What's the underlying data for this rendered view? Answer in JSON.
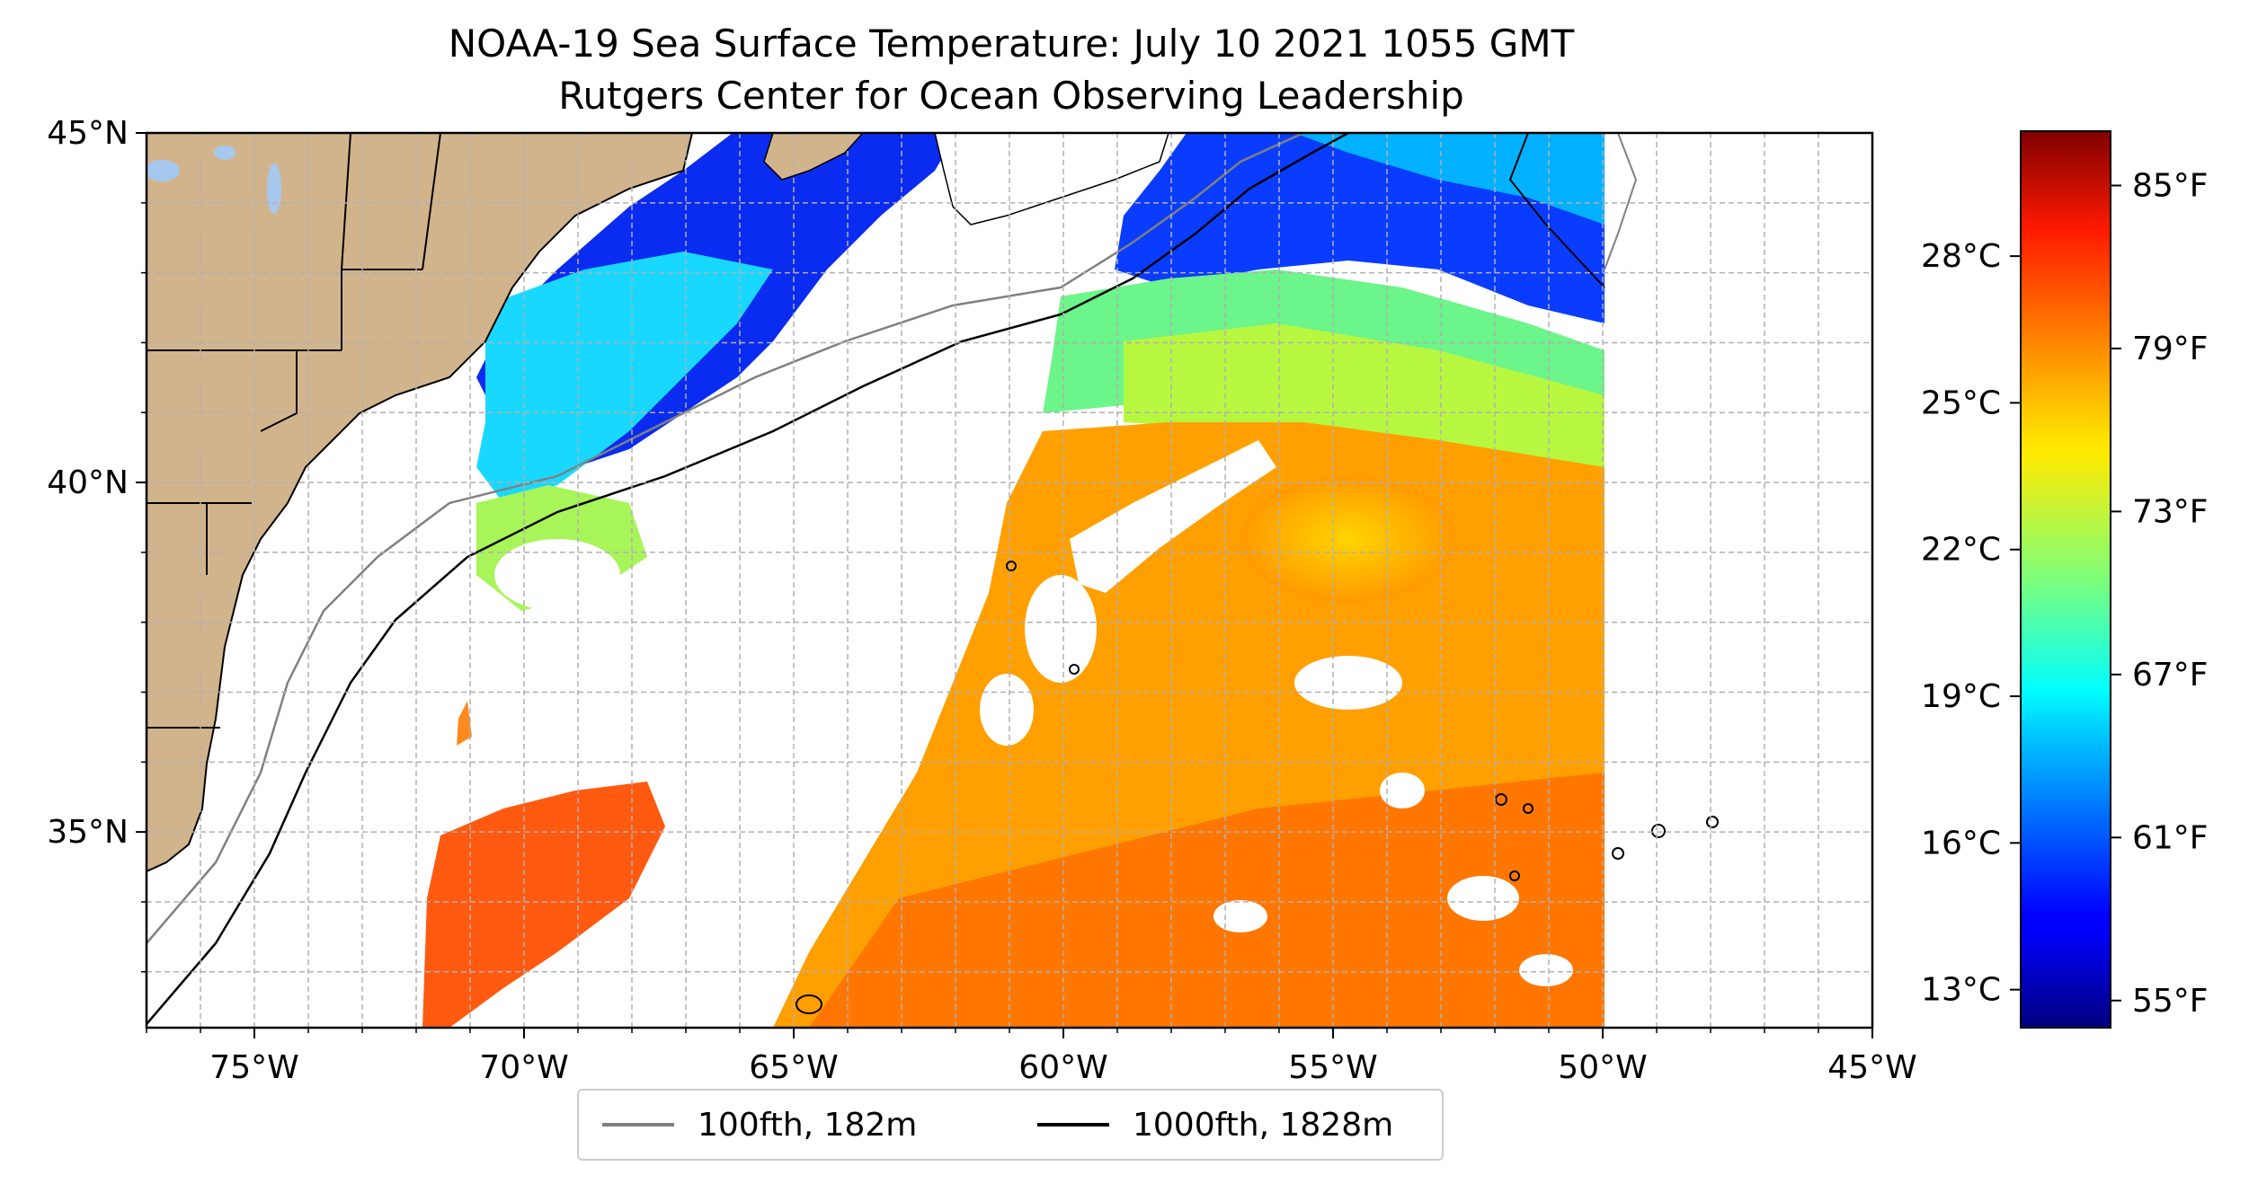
{
  "title": {
    "line1": "NOAA-19 Sea Surface Temperature: July 10 2021 1055 GMT",
    "line2": "Rutgers Center for Ocean Observing Leadership"
  },
  "map": {
    "lon_range": [
      -77,
      -45
    ],
    "lat_range": [
      32.2,
      45
    ],
    "lon_ticks": [
      "75°W",
      "70°W",
      "65°W",
      "60°W",
      "55°W",
      "50°W",
      "45°W"
    ],
    "lat_ticks": [
      "45°N",
      "40°N",
      "35°N"
    ],
    "grid": true,
    "colors": {
      "land": "#d2b48c",
      "lakes": "#a6c8ef",
      "no_data": "#ffffff"
    }
  },
  "colorbar": {
    "colormap": "jet",
    "celsius_ticks": [
      "28°C",
      "25°C",
      "22°C",
      "19°C",
      "16°C",
      "13°C"
    ],
    "fahrenheit_ticks": [
      "85°F",
      "79°F",
      "73°F",
      "67°F",
      "61°F",
      "55°F"
    ]
  },
  "legend": {
    "items": [
      {
        "label": "100fth, 182m",
        "color": "#808080"
      },
      {
        "label": "1000fth, 1828m",
        "color": "#000000"
      }
    ]
  }
}
